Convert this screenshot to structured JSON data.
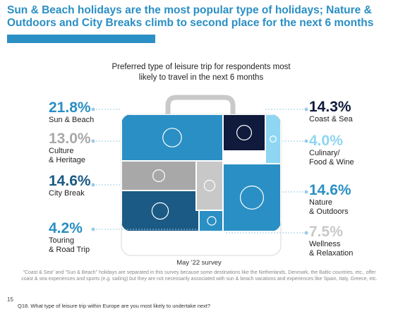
{
  "title": "Sun & Beach holidays are the most popular type of holidays; Nature & Outdoors and City Breaks climb to second place for the next 6 months",
  "chart_data": {
    "type": "treemap",
    "title": "Preferred type of leisure trip for respondents most likely to travel in the next 6 months",
    "categories": [
      "Sun & Beach",
      "Culture & Heritage",
      "City Break",
      "Touring & Road Trip",
      "Coast & Sea",
      "Culinary/ Food & Wine",
      "Nature & Outdoors",
      "Wellness & Relaxation"
    ],
    "values": [
      21.8,
      13.0,
      14.6,
      4.2,
      14.3,
      4.0,
      14.6,
      7.5
    ],
    "unit": "%"
  },
  "labels": [
    {
      "value": "21.8%",
      "name": "Sun & Beach",
      "color": "#2a8fc4",
      "icon": "sun-palm-island-icon"
    },
    {
      "value": "13.0%",
      "name": "Culture\n& Heritage",
      "color": "#a8a8a8",
      "icon": "arc-de-triomphe-icon"
    },
    {
      "value": "14.6%",
      "name": "City Break",
      "color": "#1b5a84",
      "icon": "city-buildings-icon"
    },
    {
      "value": "4.2%",
      "name": "Touring\n& Road Trip",
      "color": "#2a8fc4",
      "icon": "car-icon"
    },
    {
      "value": "14.3%",
      "name": "Coast & Sea",
      "color": "#0f1a3c",
      "icon": "waves-birds-icon"
    },
    {
      "value": "4.0%",
      "name": "Culinary/\nFood & Wine",
      "color": "#8ed6f2",
      "icon": "food-icon"
    },
    {
      "value": "14.6%",
      "name": "Nature\n& Outdoors",
      "color": "#2a8fc4",
      "icon": "sun-tree-icon"
    },
    {
      "value": "7.5%",
      "name": "Wellness\n& Relaxation",
      "color": "#c8c8c8",
      "icon": "lounger-icon"
    }
  ],
  "survey_label": "May '22 survey",
  "footnote": "\"Coast & Sea\" and \"Sun & Beach\" holidays are separated in this survey because some destinations like the Netherlands, Denmark, the Baltic countries, etc., offer coast & sea experiences and sports (e.g. sailing) but they are not necessarily associated with sun & beach vacations and experiences like Spain, Italy, Greece, etc.",
  "page_number": "15",
  "question": "Q18. What type of leisure trip within Europe are you most likely to undertake next?"
}
